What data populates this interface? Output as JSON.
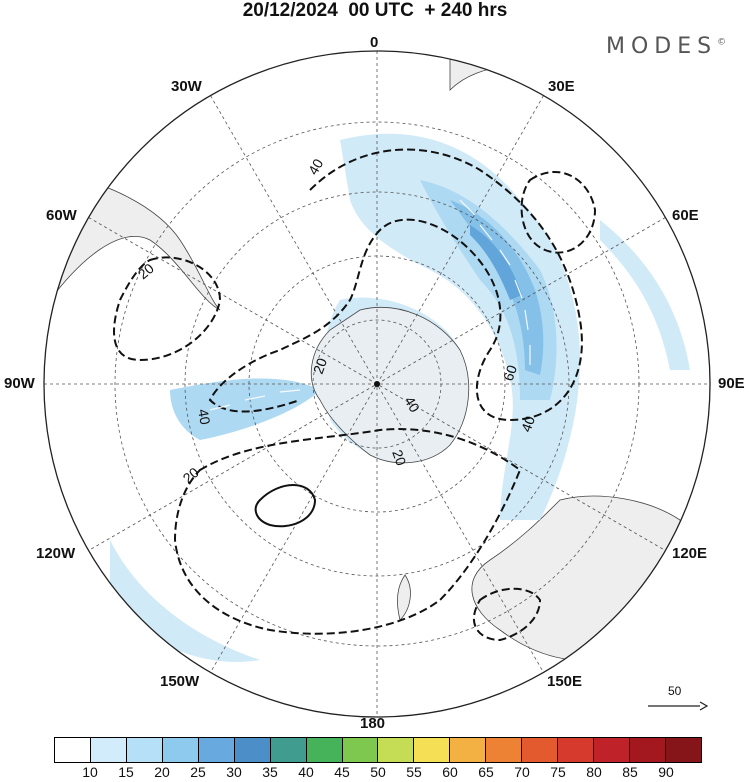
{
  "title": "20/12/2024  00 UTC  + 240 hrs",
  "brand": "MODES",
  "brand_mark": "©",
  "map": {
    "projection": "south-polar-stereographic",
    "longitude_labels": {
      "top": "0",
      "bottom": "180",
      "left": "90W",
      "right": "90E",
      "ul1": "30W",
      "ul2": "60W",
      "ur1": "30E",
      "ur2": "60E",
      "ll1": "120W",
      "ll2": "150W",
      "lr1": "120E",
      "lr2": "150E"
    },
    "contour_labels": [
      "40",
      "20",
      "20",
      "40",
      "20",
      "60",
      "40",
      "40",
      "20"
    ],
    "reference_vector": "50",
    "colors": {
      "land": "#eeeeee",
      "shade1": "#cfe9f8",
      "shade2": "#a9d7f2",
      "shade3": "#7fbde8",
      "shade4": "#5aa1d9"
    }
  },
  "colorbar": {
    "ticks": [
      "10",
      "15",
      "20",
      "25",
      "30",
      "35",
      "40",
      "45",
      "50",
      "55",
      "60",
      "65",
      "70",
      "75",
      "80",
      "85",
      "90"
    ],
    "colors": [
      "#ffffff",
      "#d2ecfb",
      "#b5e0f7",
      "#8ec9ee",
      "#68aadf",
      "#4b8ec8",
      "#3f9c8e",
      "#46b25a",
      "#7ec850",
      "#c5dc55",
      "#f5df55",
      "#f3b043",
      "#ee8234",
      "#e25a2e",
      "#d53a2c",
      "#bf2229",
      "#a3181f",
      "#861519"
    ]
  }
}
